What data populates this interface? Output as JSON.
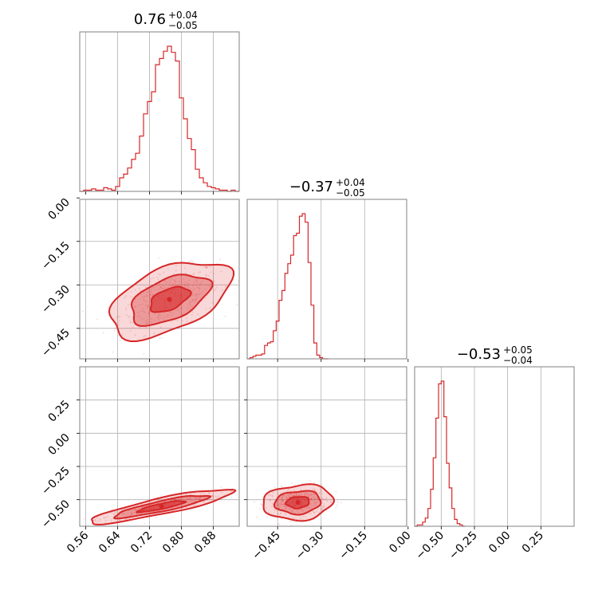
{
  "chart_data": {
    "type": "corner",
    "color": "#d62728",
    "parameters": [
      {
        "index": 0,
        "median": "0.76",
        "plus": "+0.04",
        "minus": "−0.05",
        "range": [
          0.545,
          0.945
        ],
        "ticks": [
          0.56,
          0.64,
          0.72,
          0.8,
          0.88
        ],
        "tick_labels": [
          "0.56",
          "0.64",
          "0.72",
          "0.80",
          "0.88"
        ]
      },
      {
        "index": 1,
        "median": "−0.37",
        "plus": "+0.04",
        "minus": "−0.05",
        "range": [
          -0.555,
          -0.005
        ],
        "ticks": [
          -0.45,
          -0.3,
          -0.15,
          0.0
        ],
        "tick_labels": [
          "−0.45",
          "−0.30",
          "−0.15",
          "0.00"
        ]
      },
      {
        "index": 2,
        "median": "−0.53",
        "plus": "+0.05",
        "minus": "−0.04",
        "range": [
          -0.7,
          0.5
        ],
        "ticks": [
          -0.5,
          -0.25,
          0.0,
          0.25
        ],
        "tick_labels": [
          "−0.50",
          "−0.25",
          "0.00",
          "0.25"
        ]
      }
    ],
    "histograms": [
      {
        "param": 0,
        "bins": [
          0.545,
          0.555,
          0.565,
          0.575,
          0.585,
          0.595,
          0.605,
          0.615,
          0.625,
          0.635,
          0.645,
          0.655,
          0.665,
          0.675,
          0.685,
          0.695,
          0.705,
          0.715,
          0.725,
          0.735,
          0.745,
          0.755,
          0.765,
          0.775,
          0.785,
          0.795,
          0.805,
          0.815,
          0.825,
          0.835,
          0.845,
          0.855,
          0.865,
          0.875,
          0.885,
          0.895,
          0.905,
          0.915,
          0.925,
          0.935,
          0.945
        ],
        "counts": [
          0,
          1,
          1,
          2,
          1,
          1,
          3,
          2,
          1,
          4,
          11,
          14,
          19,
          26,
          31,
          45,
          63,
          73,
          81,
          103,
          108,
          114,
          118,
          113,
          106,
          76,
          59,
          43,
          34,
          18,
          11,
          7,
          4,
          3,
          2,
          1,
          1,
          0,
          1,
          0
        ]
      },
      {
        "param": 1,
        "bins": [
          -0.555,
          -0.545,
          -0.535,
          -0.525,
          -0.515,
          -0.505,
          -0.495,
          -0.485,
          -0.475,
          -0.465,
          -0.455,
          -0.445,
          -0.435,
          -0.425,
          -0.415,
          -0.405,
          -0.395,
          -0.385,
          -0.375,
          -0.365,
          -0.355,
          -0.345,
          -0.335,
          -0.325,
          -0.315,
          -0.305,
          -0.295,
          -0.285,
          -0.275
        ],
        "counts": [
          0,
          1,
          2,
          3,
          3,
          4,
          11,
          13,
          14,
          23,
          31,
          48,
          56,
          70,
          78,
          85,
          101,
          103,
          117,
          119,
          112,
          79,
          44,
          13,
          3,
          1,
          0,
          0
        ]
      },
      {
        "param": 2,
        "bins": [
          -0.7,
          -0.68,
          -0.66,
          -0.64,
          -0.62,
          -0.6,
          -0.58,
          -0.56,
          -0.54,
          -0.52,
          -0.5,
          -0.48,
          -0.46,
          -0.44,
          -0.42,
          -0.4,
          -0.38,
          -0.36,
          -0.34,
          -0.32
        ],
        "counts": [
          0,
          1,
          1,
          3,
          6,
          13,
          27,
          50,
          79,
          104,
          106,
          80,
          46,
          28,
          13,
          5,
          2,
          1,
          0
        ]
      }
    ],
    "pairs": [
      {
        "x_param": 0,
        "y_param": 1,
        "center": [
          0.77,
          -0.35
        ],
        "cov": [
          [
            0.0025,
            0.0011
          ],
          [
            0.0011,
            0.0019
          ]
        ]
      },
      {
        "x_param": 0,
        "y_param": 2,
        "center": [
          0.75,
          -0.55
        ],
        "cov": [
          [
            0.0035,
            0.0022
          ],
          [
            0.0022,
            0.0018
          ]
        ]
      },
      {
        "x_param": 1,
        "y_param": 2,
        "center": [
          -0.38,
          -0.52
        ],
        "cov": [
          [
            0.0016,
            0.0002
          ],
          [
            0.0002,
            0.0019
          ]
        ]
      }
    ],
    "contour_levels": [
      0.39,
      0.86,
      0.99
    ],
    "grid": true
  }
}
